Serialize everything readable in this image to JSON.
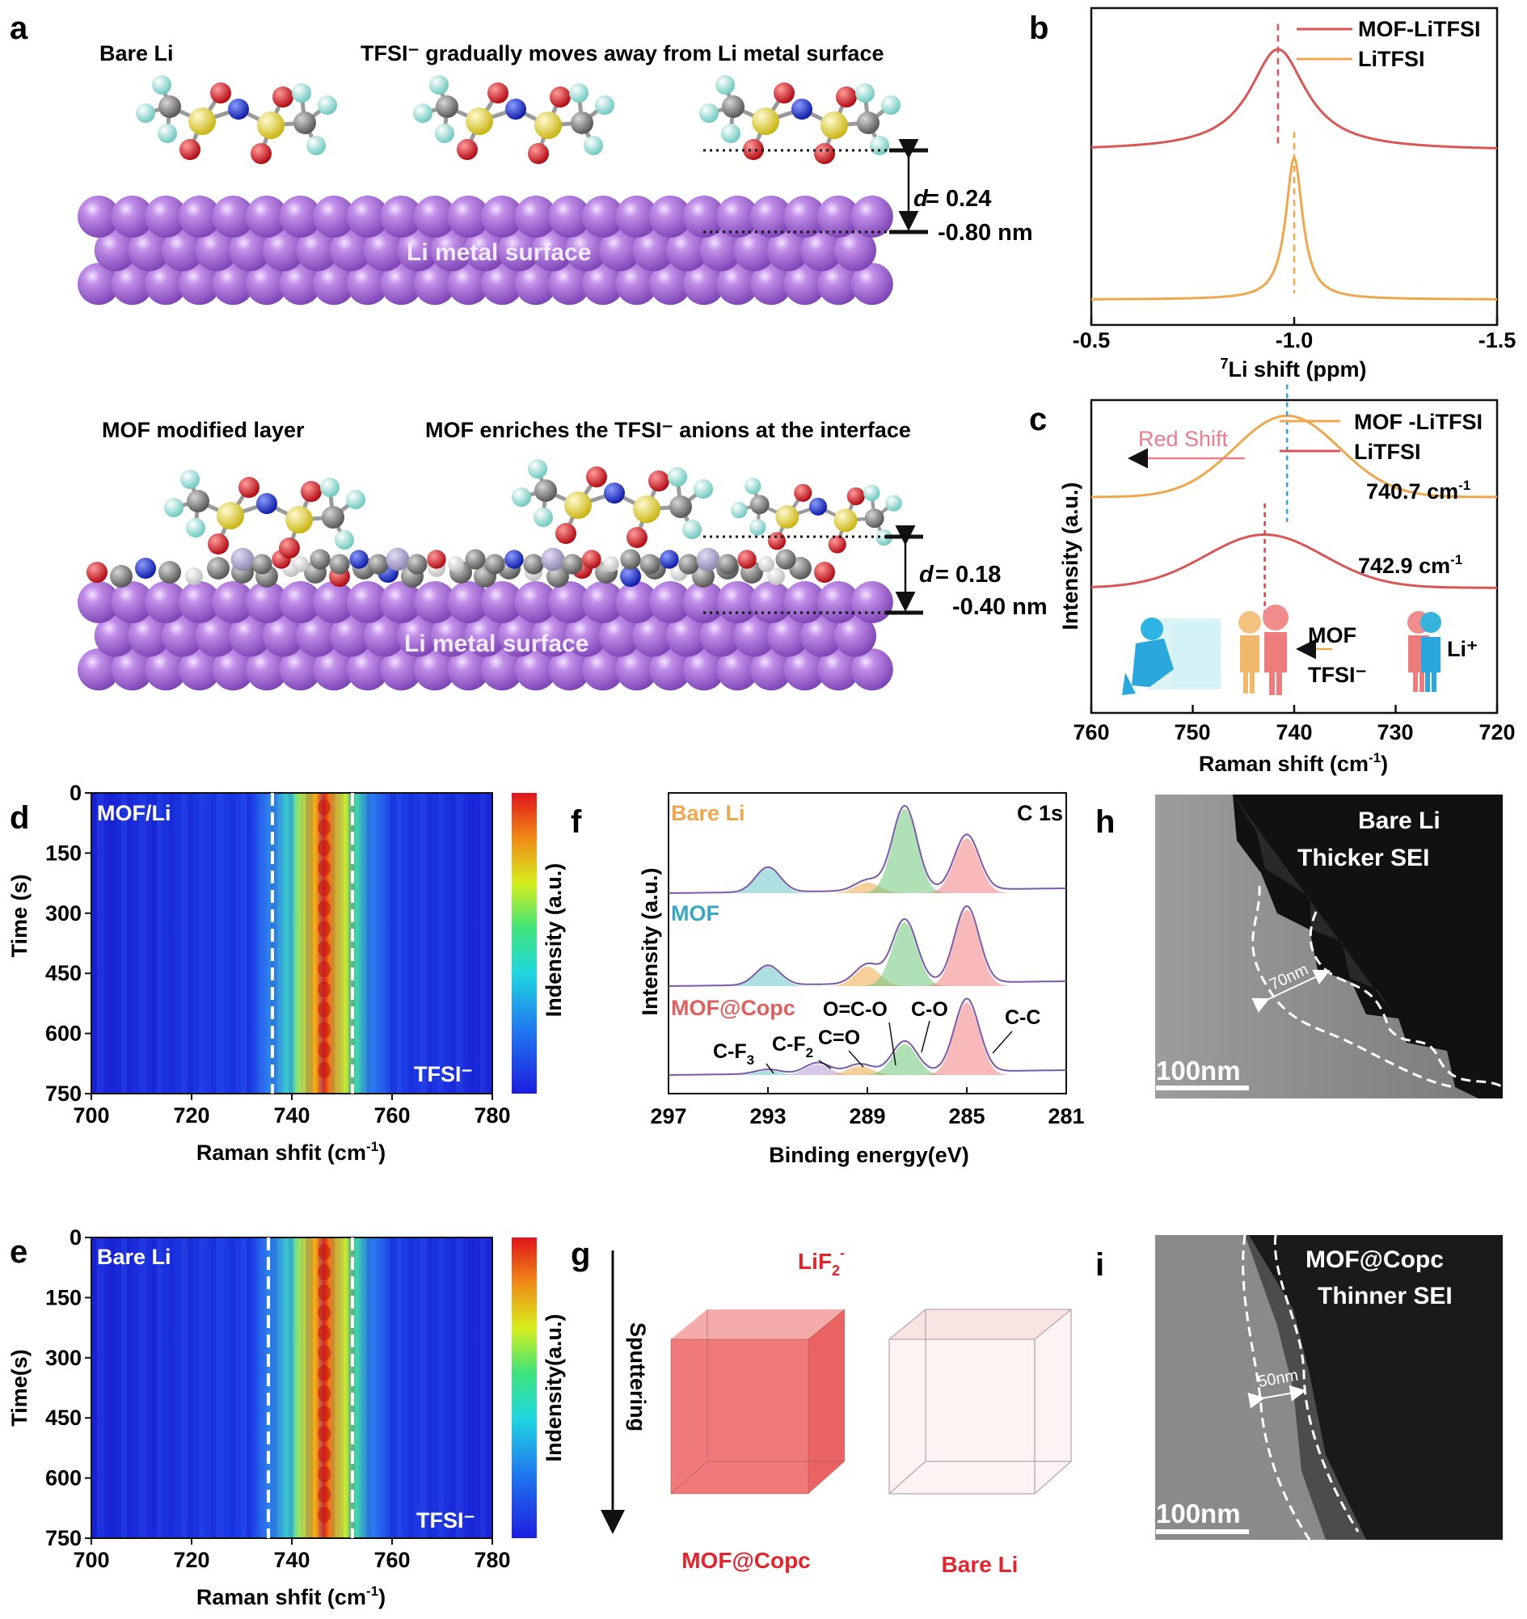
{
  "panel_letters": {
    "a": "a",
    "b": "b",
    "c": "c",
    "d": "d",
    "e": "e",
    "f": "f",
    "g": "g",
    "h": "h",
    "i": "i"
  },
  "panel_a": {
    "top_left_label": "Bare Li",
    "top_caption": "TFSI⁻ gradually moves away from Li metal surface",
    "top_d_label": "d",
    "top_d_value_1": "= 0.24",
    "top_d_value_2": "-0.80 nm",
    "surface_label": "Li metal surface",
    "bottom_left_label": "MOF modified layer",
    "bottom_caption": "MOF enriches the TFSI⁻ anions at the interface",
    "bottom_d_label": "d",
    "bottom_d_value_1": "= 0.18",
    "bottom_d_value_2": "-0.40 nm",
    "colors": {
      "li": "#a66fd8",
      "sulfur": "#e8d62a",
      "oxygen": "#d8141c",
      "fluorine": "#8fe0d8",
      "carbon": "#7a7a7a",
      "nitrogen": "#1b2fd6"
    }
  },
  "chart_data": [
    {
      "panel": "b",
      "type": "line",
      "xlabel_super": "7",
      "xlabel": "Li shift (ppm)",
      "xlim": [
        -0.5,
        -1.5
      ],
      "xticks": [
        "-0.5",
        "-1.0",
        "-1.5"
      ],
      "series": [
        {
          "name": "MOF-LiTFSI",
          "color": "#d95656",
          "peak": -0.96,
          "width": 0.17,
          "baseline": 0.55,
          "amplitude": 0.32
        },
        {
          "name": "LiTFSI",
          "color": "#efa74d",
          "peak": -1.0,
          "width": 0.05,
          "baseline": 0.08,
          "amplitude": 0.45
        }
      ]
    },
    {
      "panel": "c",
      "type": "line",
      "ylabel": "Intensity (a.u.)",
      "xlabel": "Raman shift (cm",
      "xlabel_super": "-1",
      "xlabel_end": ")",
      "xlim": [
        760,
        720
      ],
      "xticks": [
        "760",
        "750",
        "740",
        "730",
        "720"
      ],
      "arrow_label": "Red Shift",
      "peak_labels": [
        "740.7 cm",
        "742.9 cm"
      ],
      "peak_label_super": "-1",
      "legend": [
        "MOF -LiTFSI",
        "LiTFSI"
      ],
      "series": [
        {
          "name": "MOF -LiTFSI",
          "color": "#efa74d",
          "peak": 740.7,
          "width": 8,
          "baseline": 0.69,
          "amplitude": 0.26
        },
        {
          "name": "LiTFSI",
          "color": "#d95656",
          "peak": 742.9,
          "width": 9,
          "baseline": 0.4,
          "amplitude": 0.17
        }
      ],
      "cartoon_labels": {
        "mof": "MOF",
        "tfsi": "TFSI⁻",
        "li": "Li⁺"
      }
    },
    {
      "panel": "d",
      "type": "heatmap",
      "corner_label": "MOF/Li",
      "ion_label": "TFSI⁻",
      "ylabel": "Time (s)",
      "xlabel": "Raman shfit (cm",
      "xlabel_super": "-1",
      "xlabel_end": ")",
      "xlim": [
        700,
        780
      ],
      "ylim": [
        0,
        750
      ],
      "xticks": [
        "700",
        "720",
        "740",
        "760",
        "780"
      ],
      "yticks": [
        "0",
        "150",
        "300",
        "450",
        "600",
        "750"
      ],
      "colorbar_label": "Indensity (a.u.)",
      "dashed_lines_x": [
        736,
        752
      ]
    },
    {
      "panel": "e",
      "type": "heatmap",
      "corner_label": "Bare Li",
      "ion_label": "TFSI⁻",
      "ylabel": "Time(s)",
      "xlabel": "Raman shfit (cm",
      "xlabel_super": "-1",
      "xlabel_end": ")",
      "xlim": [
        700,
        780
      ],
      "ylim": [
        0,
        750
      ],
      "xticks": [
        "700",
        "720",
        "740",
        "760",
        "780"
      ],
      "yticks": [
        "0",
        "150",
        "300",
        "450",
        "600",
        "750"
      ],
      "colorbar_label": "Indensity(a.u.)",
      "dashed_lines_x": [
        735,
        752
      ]
    },
    {
      "panel": "f",
      "type": "line",
      "title": "C 1s",
      "ylabel": "Intensity (a.u.)",
      "xlabel": "Binding energy(eV)",
      "xlim": [
        297,
        281
      ],
      "xticks": [
        "297",
        "293",
        "289",
        "285",
        "281"
      ],
      "series": [
        {
          "name": "Bare Li",
          "color": "#efa74d",
          "peaks": [
            {
              "be": 293.0,
              "h": 0.28
            },
            {
              "be": 289.0,
              "h": 0.12
            },
            {
              "be": 287.5,
              "h": 0.95
            },
            {
              "be": 285.0,
              "h": 0.62
            }
          ]
        },
        {
          "name": "MOF",
          "color": "#3aa6c1",
          "peaks": [
            {
              "be": 293.0,
              "h": 0.22
            },
            {
              "be": 289.0,
              "h": 0.22
            },
            {
              "be": 287.5,
              "h": 0.72
            },
            {
              "be": 285.0,
              "h": 0.86
            }
          ]
        },
        {
          "name": "MOF@Copc",
          "color": "#e06060",
          "peaks": [
            {
              "be": 293.0,
              "h": 0.05
            },
            {
              "be": 291.0,
              "h": 0.12
            },
            {
              "be": 289.3,
              "h": 0.1
            },
            {
              "be": 287.5,
              "h": 0.35
            },
            {
              "be": 285.0,
              "h": 0.82
            }
          ]
        }
      ],
      "peak_labels": [
        "C-F",
        "C-F",
        "C=O",
        "O=C-O",
        "C-O",
        "C-C"
      ],
      "peak_label_subs": [
        "3",
        "2"
      ]
    }
  ],
  "panel_g": {
    "top_label": "LiF",
    "top_label_sub": "2",
    "top_label_sup": "-",
    "axis_label": "Sputtering",
    "left_cube": "MOF@Copc",
    "right_cube": "Bare Li",
    "cube_color": "#ef6f6f",
    "label_color": "#e0262c"
  },
  "panel_h": {
    "line1": "Bare Li",
    "line2": "Thicker  SEI",
    "scale": "100nm",
    "thickness": "70nm"
  },
  "panel_i": {
    "line1": "MOF@Copc",
    "line2": "Thinner  SEI",
    "scale": "100nm",
    "thickness": "50nm"
  }
}
